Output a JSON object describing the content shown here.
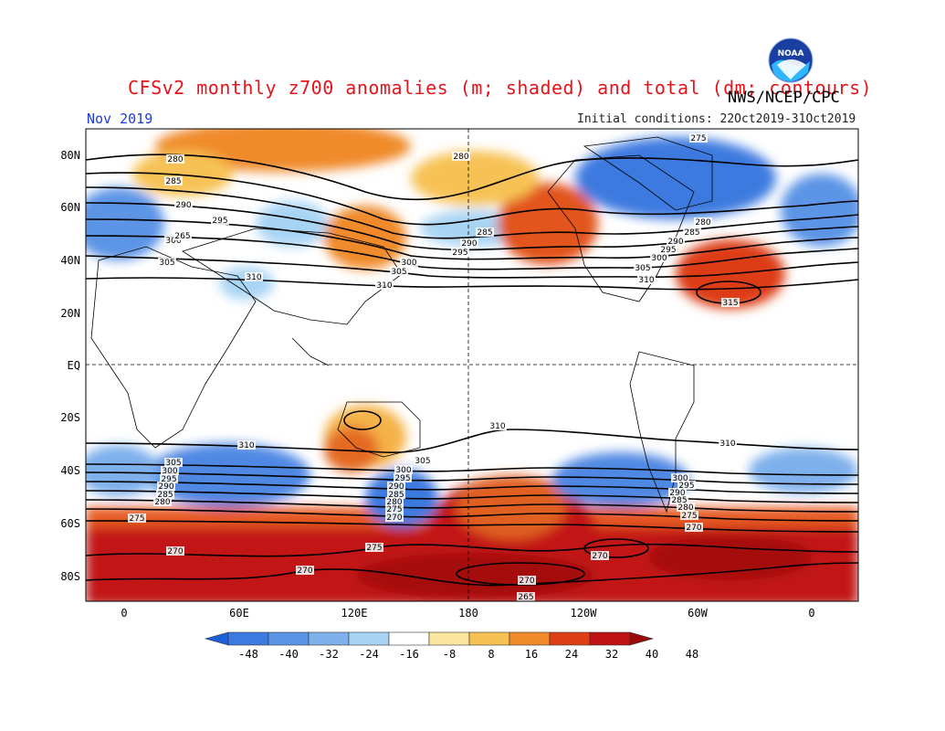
{
  "header": {
    "title": "CFSv2 monthly z700 anomalies (m; shaded) and total (dm; contours)",
    "agency": "NWS/NCEP/CPC",
    "period": "Nov 2019",
    "initial_conditions": "Initial conditions: 22Oct2019-31Oct2019",
    "logo_text": "NOAA"
  },
  "axes": {
    "lat_labels": [
      "80N",
      "60N",
      "40N",
      "20N",
      "EQ",
      "20S",
      "40S",
      "60S",
      "80S"
    ],
    "lon_labels": [
      "0",
      "60E",
      "120E",
      "180",
      "120W",
      "60W",
      "0"
    ]
  },
  "colorbar": {
    "labels": [
      "-48",
      "-40",
      "-32",
      "-24",
      "-16",
      "-8",
      "8",
      "16",
      "24",
      "32",
      "40",
      "48"
    ],
    "colors": [
      "#1f5fd6",
      "#3c7ae0",
      "#5b94e6",
      "#7eb0ec",
      "#a8d4f4",
      "#ffffff",
      "#fbe6a0",
      "#f7c254",
      "#f08a2a",
      "#dd3e16",
      "#bf1212",
      "#9a0a0a"
    ]
  },
  "contour_labels": [
    "280",
    "285",
    "290",
    "295",
    "300",
    "305",
    "310",
    "280",
    "285",
    "290",
    "295",
    "300",
    "305",
    "310",
    "275",
    "280",
    "285",
    "290",
    "295",
    "300",
    "305",
    "310",
    "315",
    "310",
    "305",
    "300",
    "295",
    "290",
    "285",
    "280",
    "275",
    "270",
    "310",
    "300",
    "295",
    "290",
    "285",
    "280",
    "275",
    "270",
    "310",
    "305",
    "300",
    "295",
    "290",
    "285",
    "280",
    "275",
    "270",
    "270",
    "275",
    "270",
    "265",
    "270",
    "265"
  ]
}
